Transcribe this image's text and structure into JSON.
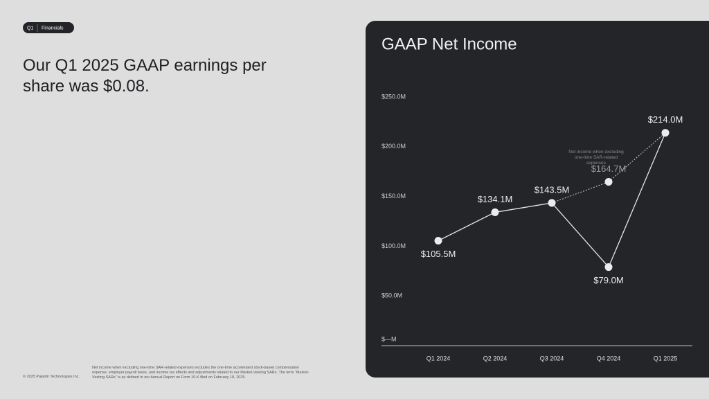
{
  "badge": {
    "section": "Q1",
    "label": "Financials"
  },
  "heading": "Our Q1 2025 GAAP earnings per share was $0.08.",
  "copyright": "© 2025 Palantir Technologies Inc.",
  "footnote": "Net income when excluding one-time SAR-related expenses excludes the one-time accelerated stock-based compensation expense, employer payroll taxes, and income tax effects and adjustments related to our Market-Vesting SARs. The term “Market-Vesting SARs” is as defined in our Annual Report on Form 10-K filed on February 18, 2025.",
  "chart_data": {
    "type": "line",
    "title": "GAAP Net Income",
    "categories": [
      "Q1 2024",
      "Q2 2024",
      "Q3 2024",
      "Q4 2024",
      "Q1 2025"
    ],
    "series": [
      {
        "color": "#e6e6e6",
        "values": [
          105.5,
          134.1,
          143.5,
          79.0,
          214.0
        ],
        "value_labels": [
          "$105.5M",
          "$134.1M",
          "$143.5M",
          "$79.0M",
          "$214.0M"
        ]
      },
      {
        "name": "Net income when excluding one-time SAR-related expenses",
        "color": "#9a9a9a",
        "dashed": true,
        "values": [
          null,
          null,
          143.5,
          164.7,
          214.0
        ],
        "value_labels": [
          null,
          null,
          null,
          "$164.7M",
          null
        ]
      }
    ],
    "ylim": [
      0,
      250
    ],
    "yticks": [
      {
        "value": 0,
        "label": "$—M"
      },
      {
        "value": 50,
        "label": "$50.0M"
      },
      {
        "value": 100,
        "label": "$100.0M"
      },
      {
        "value": 150,
        "label": "$150.0M"
      },
      {
        "value": 200,
        "label": "$200.0M"
      },
      {
        "value": 250,
        "label": "$250.0M"
      }
    ],
    "grid": false
  }
}
